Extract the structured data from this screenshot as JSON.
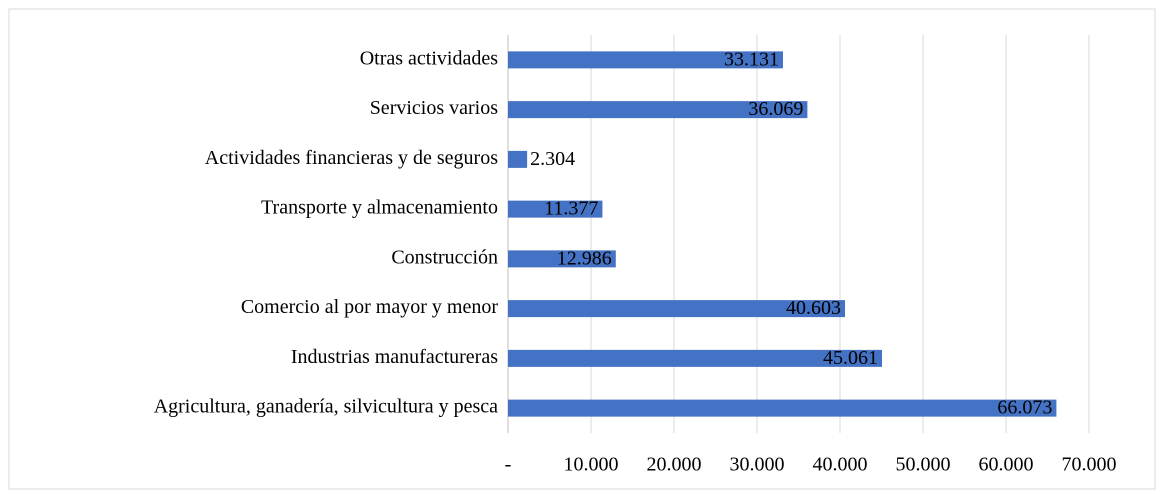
{
  "chart_data": {
    "type": "bar",
    "orientation": "horizontal",
    "categories": [
      "Otras actividades",
      "Servicios varios",
      "Actividades financieras y de seguros",
      "Transporte y almacenamiento",
      "Construcción",
      "Comercio al por mayor y menor",
      "Industrias manufactureras",
      "Agricultura, ganadería, silvicultura y pesca"
    ],
    "values": [
      33131,
      36069,
      2304,
      11377,
      12986,
      40603,
      45061,
      66073
    ],
    "value_labels": [
      "33.131",
      "36.069",
      "2.304",
      "11.377",
      "12.986",
      "40.603",
      "45.061",
      "66.073"
    ],
    "color": "#4472c4",
    "xlim": [
      0,
      70000
    ],
    "xticks": [
      {
        "value": 0,
        "label": "-"
      },
      {
        "value": 10000,
        "label": "10.000"
      },
      {
        "value": 20000,
        "label": "20.000"
      },
      {
        "value": 30000,
        "label": "30.000"
      },
      {
        "value": 40000,
        "label": "40.000"
      },
      {
        "value": 50000,
        "label": "50.000"
      },
      {
        "value": 60000,
        "label": "60.000"
      },
      {
        "value": 70000,
        "label": "70.000"
      }
    ],
    "grid": true
  }
}
